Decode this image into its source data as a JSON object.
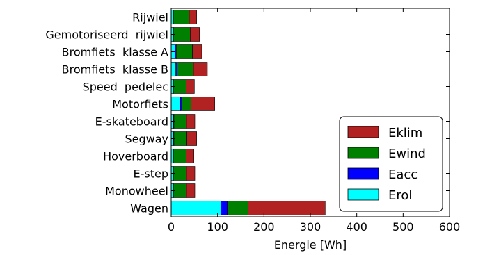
{
  "chart_data": {
    "type": "bar",
    "orientation": "horizontal",
    "stacked": true,
    "xlabel": "Energie [Wh]",
    "ylabel": "",
    "title": "",
    "xlim": [
      0,
      600
    ],
    "xticks": [
      0,
      100,
      200,
      300,
      400,
      500,
      600
    ],
    "grid": false,
    "legend_position": "lower-right",
    "categories": [
      "Rijwiel",
      "Gemotoriseerd  rijwiel",
      "Bromfiets  klasse A",
      "Bromfiets  klasse B",
      "Speed  pedelec",
      "Motorfiets",
      "E-skateboard",
      "Segway",
      "Hoverboard",
      "E-step",
      "Monowheel",
      "Wagen"
    ],
    "series": [
      {
        "name": "Erol",
        "color": "#00ffff",
        "values": [
          4,
          4,
          8,
          10,
          4,
          20,
          5,
          5,
          4,
          4,
          4,
          107
        ]
      },
      {
        "name": "Eacc",
        "color": "#0000ff",
        "values": [
          1,
          1,
          3,
          3,
          1,
          3,
          1,
          1,
          1,
          1,
          1,
          14
        ]
      },
      {
        "name": "Ewind",
        "color": "#008000",
        "values": [
          34,
          36,
          35,
          35,
          27,
          20,
          27,
          28,
          27,
          28,
          28,
          45
        ]
      },
      {
        "name": "Eklim",
        "color": "#b22222",
        "values": [
          16,
          20,
          20,
          30,
          18,
          51,
          18,
          21,
          17,
          18,
          18,
          166
        ]
      }
    ],
    "legend_order": [
      "Eklim",
      "Ewind",
      "Eacc",
      "Erol"
    ]
  }
}
